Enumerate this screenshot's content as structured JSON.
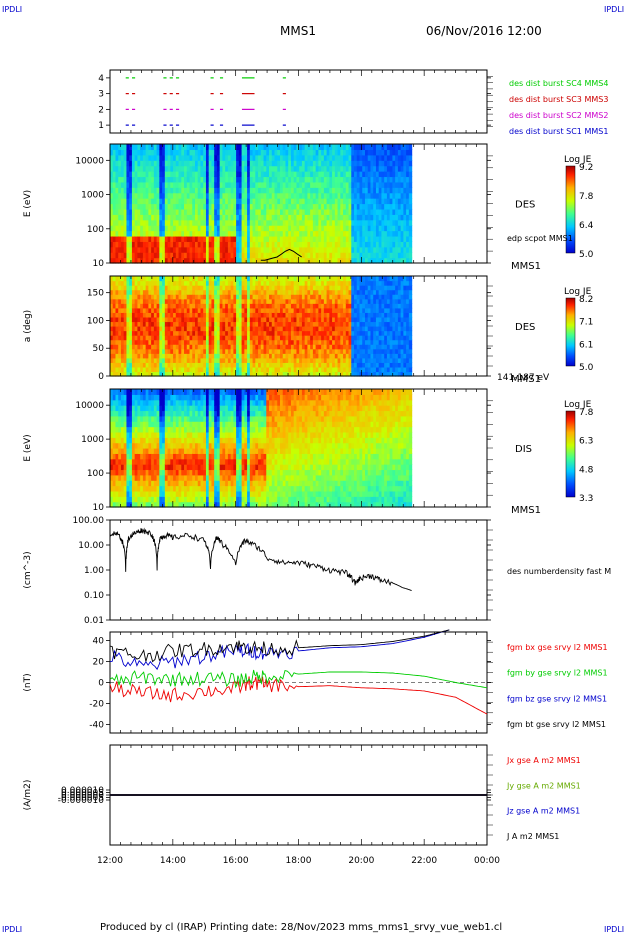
{
  "header": {
    "corner_tl": "IPDLI",
    "corner_tr": "IPDLI",
    "corner_bl": "IPDLI",
    "corner_br": "IPDLI",
    "title": "MMS1",
    "date": "06/Nov/2016 12:00",
    "footer": "Produced by cl (IRAP)   Printing date: 28/Nov/2023   mms_mms1_srvy_vue_web1.cl"
  },
  "chart_data": [
    {
      "type": "scatter",
      "panel": "burst-intervals",
      "ylim": [
        0.5,
        4.5
      ],
      "y_ticks": [
        "1",
        "2",
        "3",
        "4"
      ],
      "series": [
        {
          "name": "des dist burst SC1 MMS1",
          "color": "#0000cc",
          "y": 1,
          "intervals_h": [
            [
              12.5,
              12.6
            ],
            [
              12.7,
              12.8
            ],
            [
              13.7,
              13.8
            ],
            [
              13.9,
              14.0
            ],
            [
              14.1,
              14.2
            ],
            [
              15.2,
              15.3
            ],
            [
              15.5,
              15.6
            ],
            [
              16.2,
              16.6
            ],
            [
              17.5,
              17.6
            ]
          ]
        },
        {
          "name": "des dist burst SC2 MMS2",
          "color": "#cc00cc",
          "y": 2,
          "intervals_h": [
            [
              12.5,
              12.6
            ],
            [
              12.7,
              12.8
            ],
            [
              13.7,
              13.8
            ],
            [
              13.9,
              14.0
            ],
            [
              14.1,
              14.2
            ],
            [
              15.2,
              15.3
            ],
            [
              15.5,
              15.6
            ],
            [
              16.2,
              16.6
            ],
            [
              17.5,
              17.6
            ]
          ]
        },
        {
          "name": "des dist burst SC3 MMS3",
          "color": "#cc0000",
          "y": 3,
          "intervals_h": [
            [
              12.5,
              12.6
            ],
            [
              12.7,
              12.8
            ],
            [
              13.7,
              13.8
            ],
            [
              13.9,
              14.0
            ],
            [
              14.1,
              14.2
            ],
            [
              15.2,
              15.3
            ],
            [
              15.5,
              15.6
            ],
            [
              16.2,
              16.6
            ],
            [
              17.5,
              17.6
            ]
          ]
        },
        {
          "name": "des dist burst SC4 MMS4",
          "color": "#00cc00",
          "y": 4,
          "intervals_h": [
            [
              12.5,
              12.6
            ],
            [
              12.7,
              12.8
            ],
            [
              13.7,
              13.8
            ],
            [
              13.9,
              14.0
            ],
            [
              14.1,
              14.2
            ],
            [
              15.2,
              15.3
            ],
            [
              15.5,
              15.6
            ],
            [
              16.2,
              16.6
            ],
            [
              17.5,
              17.6
            ]
          ]
        }
      ]
    },
    {
      "type": "heatmap",
      "panel": "des-energy",
      "ylabel": "E (eV)",
      "yscale": "log",
      "ylim": [
        10,
        30000
      ],
      "y_ticks": [
        "10",
        "100",
        "1000",
        "10000"
      ],
      "species": "DES",
      "sc": "MMS1",
      "colorbar": {
        "label": "Log JE",
        "min": 5.0,
        "max": 9.2,
        "ticks": [
          "9.2",
          "7.8",
          "6.4",
          "5.0"
        ]
      },
      "overlay": {
        "name": "edp scpot MMS1",
        "values_v": [
          12,
          12,
          13,
          14,
          15,
          18,
          22,
          25,
          22,
          18,
          15
        ]
      },
      "data_end_h": 21.6
    },
    {
      "type": "heatmap",
      "panel": "des-pitch",
      "ylabel": "a (deg)",
      "ylim": [
        0,
        180
      ],
      "y_ticks": [
        "0",
        "50",
        "100",
        "150"
      ],
      "species": "DES",
      "sc": "MMS1",
      "energy_range": "141-187 eV",
      "colorbar": {
        "label": "Log JE",
        "min": 5.0,
        "max": 8.2,
        "ticks": [
          "8.2",
          "7.1",
          "6.1",
          "5.0"
        ]
      },
      "data_end_h": 21.6
    },
    {
      "type": "heatmap",
      "panel": "dis-energy",
      "ylabel": "E (eV)",
      "yscale": "log",
      "ylim": [
        10,
        30000
      ],
      "y_ticks": [
        "10",
        "100",
        "1000",
        "10000"
      ],
      "species": "DIS",
      "sc": "MMS1",
      "colorbar": {
        "label": "Log JE",
        "min": 3.3,
        "max": 7.8,
        "ticks": [
          "7.8",
          "6.3",
          "4.8",
          "3.3"
        ]
      },
      "data_end_h": 21.6
    },
    {
      "type": "line",
      "panel": "density",
      "ylabel": "(cm^-3)",
      "yscale": "log",
      "ylim": [
        0.01,
        100
      ],
      "y_ticks": [
        "100.00",
        "10.00",
        "1.00",
        "0.10",
        "0.01"
      ],
      "series": [
        {
          "name": "des numberdensity fast M",
          "color": "#000000",
          "x": [
            12.0,
            12.3,
            12.5,
            12.6,
            12.8,
            13.0,
            13.3,
            13.5,
            13.6,
            13.8,
            14.0,
            14.5,
            15.0,
            15.2,
            15.4,
            15.6,
            16.0,
            16.3,
            16.6,
            17.0,
            17.5,
            18.0,
            18.5,
            19.0,
            19.5,
            19.8,
            20.0,
            20.3,
            20.6,
            21.0,
            21.3,
            21.6
          ],
          "y": [
            30,
            25,
            1.0,
            20,
            30,
            40,
            30,
            1.0,
            20,
            25,
            20,
            25,
            15,
            1.0,
            20,
            10,
            1.5,
            15,
            10,
            3.0,
            2.0,
            2.0,
            1.5,
            1.0,
            0.8,
            0.3,
            0.5,
            0.6,
            0.4,
            0.3,
            0.2,
            0.15
          ]
        }
      ]
    },
    {
      "type": "line",
      "panel": "magnetic-field",
      "ylabel": "(nT)",
      "ylim": [
        -48,
        48
      ],
      "y_ticks": [
        "40",
        "20",
        "0",
        "-20",
        "-40"
      ],
      "series": [
        {
          "name": "fgm bx gse srvy l2 MMS1",
          "color": "#ee0000",
          "x": [
            12.0,
            13.0,
            14.0,
            15.0,
            16.0,
            16.5,
            17.0,
            18.0,
            19.0,
            20.0,
            21.0,
            22.0,
            23.0,
            24.0
          ],
          "y": [
            -5,
            -10,
            -12,
            -8,
            -6,
            0,
            -2,
            -4,
            -3,
            -5,
            -6,
            -8,
            -14,
            -30
          ]
        },
        {
          "name": "fgm by gse srvy l2 MMS1",
          "color": "#00cc00",
          "x": [
            12.0,
            13.0,
            14.0,
            15.0,
            16.0,
            16.5,
            17.0,
            18.0,
            19.0,
            20.0,
            21.0,
            22.0,
            23.0,
            24.0
          ],
          "y": [
            0,
            5,
            3,
            4,
            2,
            5,
            6,
            8,
            10,
            10,
            9,
            6,
            0,
            -5
          ]
        },
        {
          "name": "fgm bz gse srvy l2 MMS1",
          "color": "#0000cc",
          "x": [
            12.0,
            13.0,
            14.0,
            15.0,
            16.0,
            16.5,
            17.0,
            18.0,
            19.0,
            20.0,
            21.0,
            22.0,
            22.8
          ],
          "y": [
            25,
            15,
            20,
            25,
            30,
            30,
            28,
            30,
            33,
            34,
            37,
            43,
            50
          ]
        },
        {
          "name": "fgm bt gse srvy l2 MMS1",
          "color": "#000000",
          "x": [
            12.0,
            13.0,
            14.0,
            15.0,
            16.0,
            16.5,
            17.0,
            18.0,
            19.0,
            20.0,
            21.0,
            22.0,
            22.8
          ],
          "y": [
            30,
            25,
            30,
            32,
            35,
            33,
            32,
            33,
            35,
            36,
            39,
            44,
            50
          ]
        }
      ]
    },
    {
      "type": "line",
      "panel": "current-density",
      "ylabel": "(A/m2)",
      "ylim": [
        -0.0001,
        0.0001
      ],
      "y_ticks": [
        "0.000010",
        "0.000005",
        "0.000000",
        "-0.000005",
        "-0.000010"
      ],
      "series": [
        {
          "name": "Jx gse A m2 MMS1",
          "color": "#ee0000",
          "x": [
            12.0,
            18.0,
            24.0
          ],
          "y": [
            0,
            0,
            0
          ]
        },
        {
          "name": "Jy gse A m2 MMS1",
          "color": "#66aa00",
          "x": [
            12.0,
            18.0,
            24.0
          ],
          "y": [
            0,
            0,
            0
          ]
        },
        {
          "name": "Jz gse A m2 MMS1",
          "color": "#0000cc",
          "x": [
            12.0,
            18.0,
            24.0
          ],
          "y": [
            0,
            0,
            0
          ]
        },
        {
          "name": "J A m2 MMS1",
          "color": "#000000",
          "x": [
            12.0,
            18.0,
            24.0
          ],
          "y": [
            0,
            0,
            0
          ]
        }
      ]
    }
  ],
  "x_axis": {
    "ticks": [
      "12:00",
      "14:00",
      "16:00",
      "18:00",
      "20:00",
      "22:00",
      "00:00"
    ],
    "range_h": [
      12,
      24
    ]
  }
}
